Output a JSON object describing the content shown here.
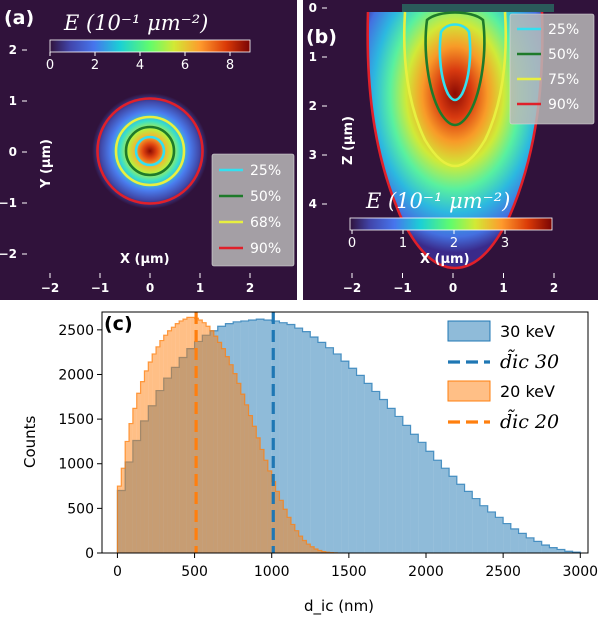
{
  "panel_a": {
    "label": "(a)",
    "cbar_title": "E (10⁻¹ μm⁻²)",
    "cbar_ticks": [
      "0",
      "2",
      "4",
      "6",
      "8"
    ],
    "xlabel": "X (μm)",
    "ylabel": "Y (μm)",
    "xticks": [
      "−2",
      "−1",
      "0",
      "1",
      "2"
    ],
    "yticks": [
      "2",
      "1",
      "0",
      "−1",
      "−2"
    ],
    "legend": [
      {
        "label": "25%",
        "color": "#33e0f0"
      },
      {
        "label": "50%",
        "color": "#1e7a2a"
      },
      {
        "label": "68%",
        "color": "#e8f040"
      },
      {
        "label": "90%",
        "color": "#e0202a"
      }
    ],
    "contour_radii_um": [
      0.28,
      0.48,
      0.68,
      1.05
    ]
  },
  "panel_b": {
    "label": "(b)",
    "cbar_title": "E (10⁻¹ μm⁻²)",
    "cbar_ticks": [
      "0",
      "1",
      "2",
      "3"
    ],
    "xlabel": "X (μm)",
    "ylabel": "Z (μm)",
    "xticks": [
      "−2",
      "−1",
      "0",
      "1",
      "2"
    ],
    "yticks": [
      "0",
      "1",
      "2",
      "3",
      "4"
    ],
    "legend": [
      {
        "label": "25%",
        "color": "#33e0f0"
      },
      {
        "label": "50%",
        "color": "#1e7a2a"
      },
      {
        "label": "75%",
        "color": "#e8f040"
      },
      {
        "label": "90%",
        "color": "#e0202a"
      }
    ]
  },
  "chart_data": {
    "type": "bar",
    "label": "(c)",
    "xlabel": "d_ic (nm)",
    "ylabel": "Counts",
    "xlim": [
      -100,
      3050
    ],
    "ylim": [
      0,
      2700
    ],
    "xticks": [
      0,
      500,
      1000,
      1500,
      2000,
      2500,
      3000
    ],
    "yticks": [
      0,
      500,
      1000,
      1500,
      2000,
      2500
    ],
    "series": [
      {
        "name": "30 keV",
        "color": "#1f77b4",
        "median": 1010,
        "median_label": "d̃ic 30",
        "x": [
          0,
          50,
          100,
          150,
          200,
          250,
          300,
          350,
          400,
          450,
          500,
          550,
          600,
          650,
          700,
          750,
          800,
          850,
          900,
          950,
          1000,
          1050,
          1100,
          1150,
          1200,
          1250,
          1300,
          1350,
          1400,
          1450,
          1500,
          1550,
          1600,
          1650,
          1700,
          1750,
          1800,
          1850,
          1900,
          1950,
          2000,
          2050,
          2100,
          2150,
          2200,
          2250,
          2300,
          2350,
          2400,
          2450,
          2500,
          2550,
          2600,
          2650,
          2700,
          2750,
          2800,
          2850,
          2900,
          2950
        ],
        "values": [
          700,
          1020,
          1260,
          1480,
          1650,
          1820,
          1960,
          2080,
          2190,
          2290,
          2370,
          2440,
          2490,
          2540,
          2570,
          2590,
          2600,
          2610,
          2620,
          2610,
          2600,
          2580,
          2560,
          2520,
          2480,
          2420,
          2360,
          2300,
          2230,
          2150,
          2070,
          1990,
          1900,
          1810,
          1720,
          1620,
          1530,
          1430,
          1330,
          1240,
          1140,
          1040,
          950,
          860,
          770,
          690,
          610,
          530,
          460,
          400,
          330,
          270,
          220,
          170,
          130,
          90,
          60,
          40,
          20,
          10
        ]
      },
      {
        "name": "20 keV",
        "color": "#ff7f0e",
        "median": 510,
        "median_label": "d̃ic 20",
        "x": [
          0,
          25,
          50,
          75,
          100,
          125,
          150,
          175,
          200,
          225,
          250,
          275,
          300,
          325,
          350,
          375,
          400,
          425,
          450,
          475,
          500,
          525,
          550,
          575,
          600,
          625,
          650,
          675,
          700,
          725,
          750,
          775,
          800,
          825,
          850,
          875,
          900,
          925,
          950,
          975,
          1000,
          1025,
          1050,
          1075,
          1100,
          1125,
          1150,
          1175,
          1200,
          1225,
          1250,
          1275,
          1300,
          1325,
          1350,
          1375,
          1400
        ],
        "values": [
          750,
          950,
          1250,
          1450,
          1620,
          1790,
          1920,
          2040,
          2140,
          2230,
          2310,
          2380,
          2440,
          2490,
          2530,
          2570,
          2600,
          2620,
          2640,
          2640,
          2630,
          2610,
          2580,
          2540,
          2490,
          2430,
          2360,
          2290,
          2200,
          2110,
          2010,
          1900,
          1780,
          1660,
          1540,
          1420,
          1290,
          1160,
          1040,
          920,
          800,
          690,
          590,
          490,
          400,
          320,
          250,
          190,
          140,
          100,
          70,
          45,
          28,
          15,
          8,
          4,
          2
        ]
      }
    ]
  }
}
